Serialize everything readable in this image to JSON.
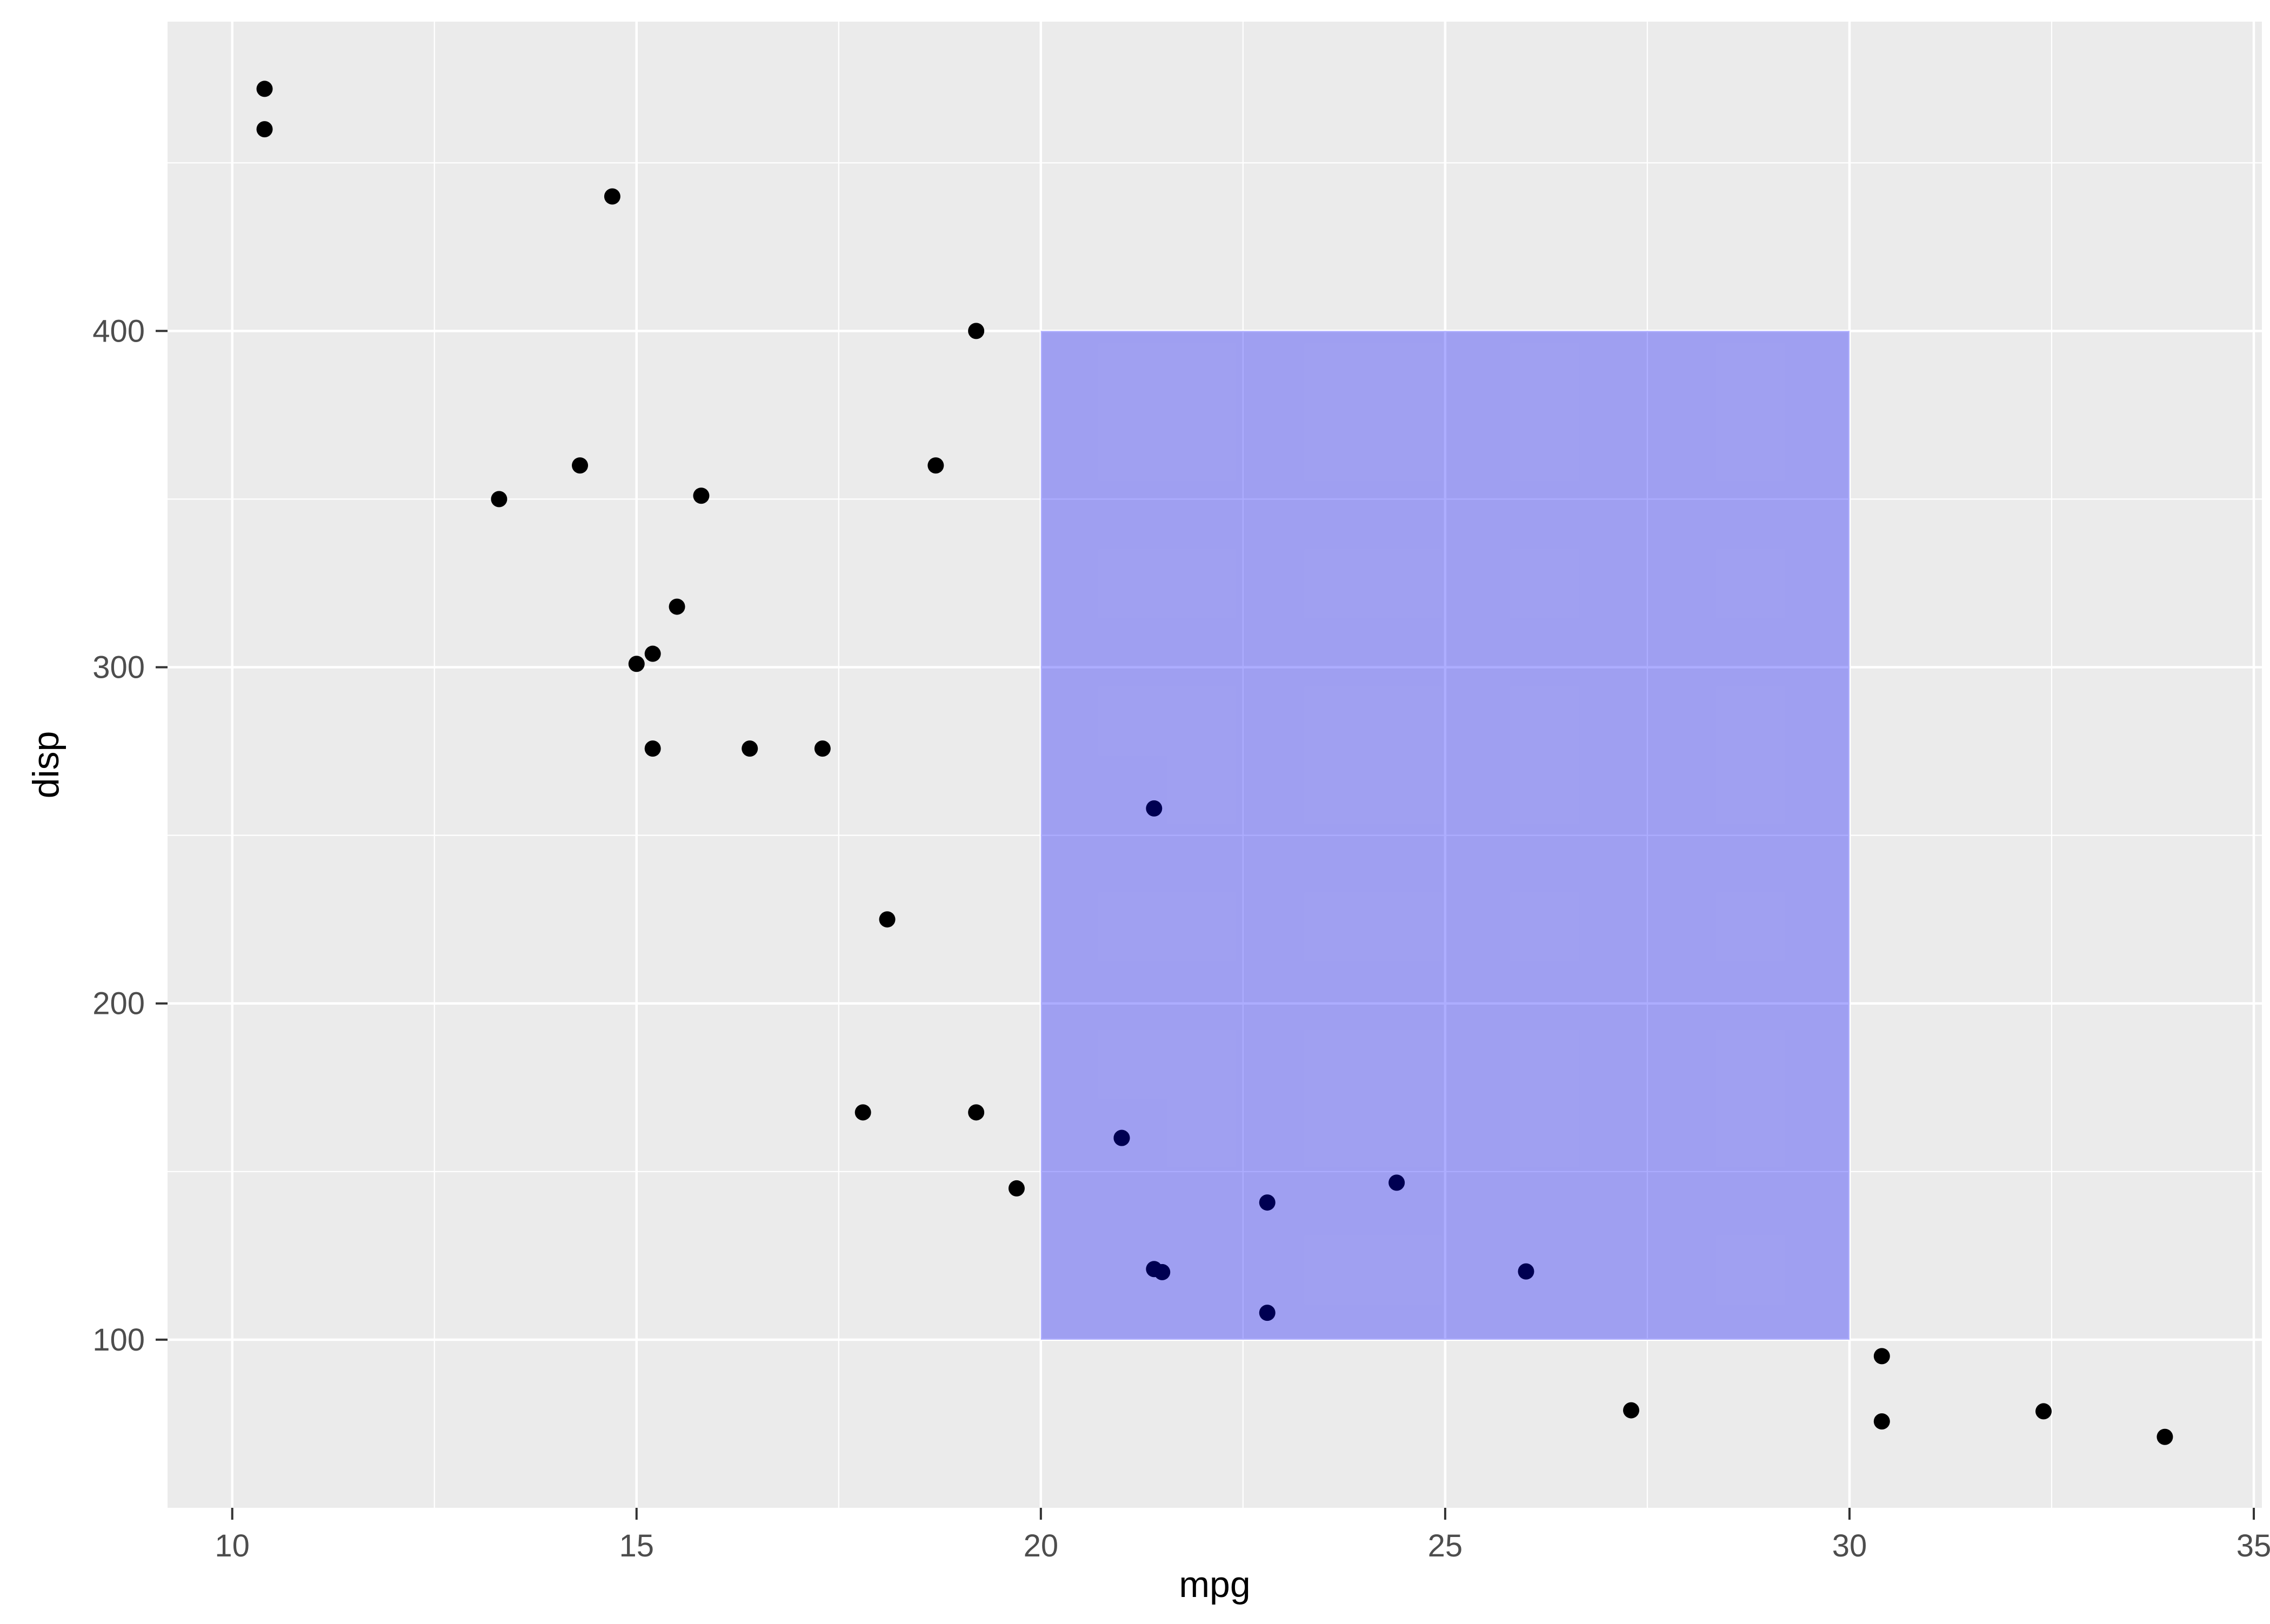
{
  "chart_data": {
    "type": "scatter",
    "title": "",
    "xlabel": "mpg",
    "ylabel": "disp",
    "xlim": [
      9.2,
      35.1
    ],
    "ylim": [
      50,
      492
    ],
    "x_ticks": [
      10,
      15,
      20,
      25,
      30,
      35
    ],
    "y_ticks": [
      100,
      200,
      300,
      400
    ],
    "x_minor": [
      12.5,
      17.5,
      22.5,
      27.5,
      32.5
    ],
    "y_minor": [
      150,
      250,
      350,
      450
    ],
    "grid": true,
    "legend": "none",
    "panel_bg": "#EBEBEB",
    "grid_color": "#FFFFFF",
    "point_color": "#000000",
    "axis_text_color": "#4D4D4D",
    "axis_title_color": "#000000",
    "annotation_rect": {
      "xmin": 20,
      "xmax": 30,
      "ymin": 100,
      "ymax": 400,
      "fill": "#0000FF",
      "opacity": 0.32
    },
    "points": [
      [
        21.0,
        160.0
      ],
      [
        21.0,
        160.0
      ],
      [
        22.8,
        108.0
      ],
      [
        21.4,
        258.0
      ],
      [
        18.7,
        360.0
      ],
      [
        18.1,
        225.0
      ],
      [
        14.3,
        360.0
      ],
      [
        24.4,
        146.7
      ],
      [
        22.8,
        140.8
      ],
      [
        19.2,
        167.6
      ],
      [
        17.8,
        167.6
      ],
      [
        16.4,
        275.8
      ],
      [
        17.3,
        275.8
      ],
      [
        15.2,
        275.8
      ],
      [
        10.4,
        472.0
      ],
      [
        10.4,
        460.0
      ],
      [
        14.7,
        440.0
      ],
      [
        32.4,
        78.7
      ],
      [
        30.4,
        75.7
      ],
      [
        33.9,
        71.1
      ],
      [
        21.5,
        120.1
      ],
      [
        15.5,
        318.0
      ],
      [
        15.2,
        304.0
      ],
      [
        13.3,
        350.0
      ],
      [
        19.2,
        400.0
      ],
      [
        27.3,
        79.0
      ],
      [
        26.0,
        120.3
      ],
      [
        30.4,
        95.1
      ],
      [
        15.8,
        351.0
      ],
      [
        19.7,
        145.0
      ],
      [
        15.0,
        301.0
      ],
      [
        21.4,
        121.0
      ]
    ]
  }
}
